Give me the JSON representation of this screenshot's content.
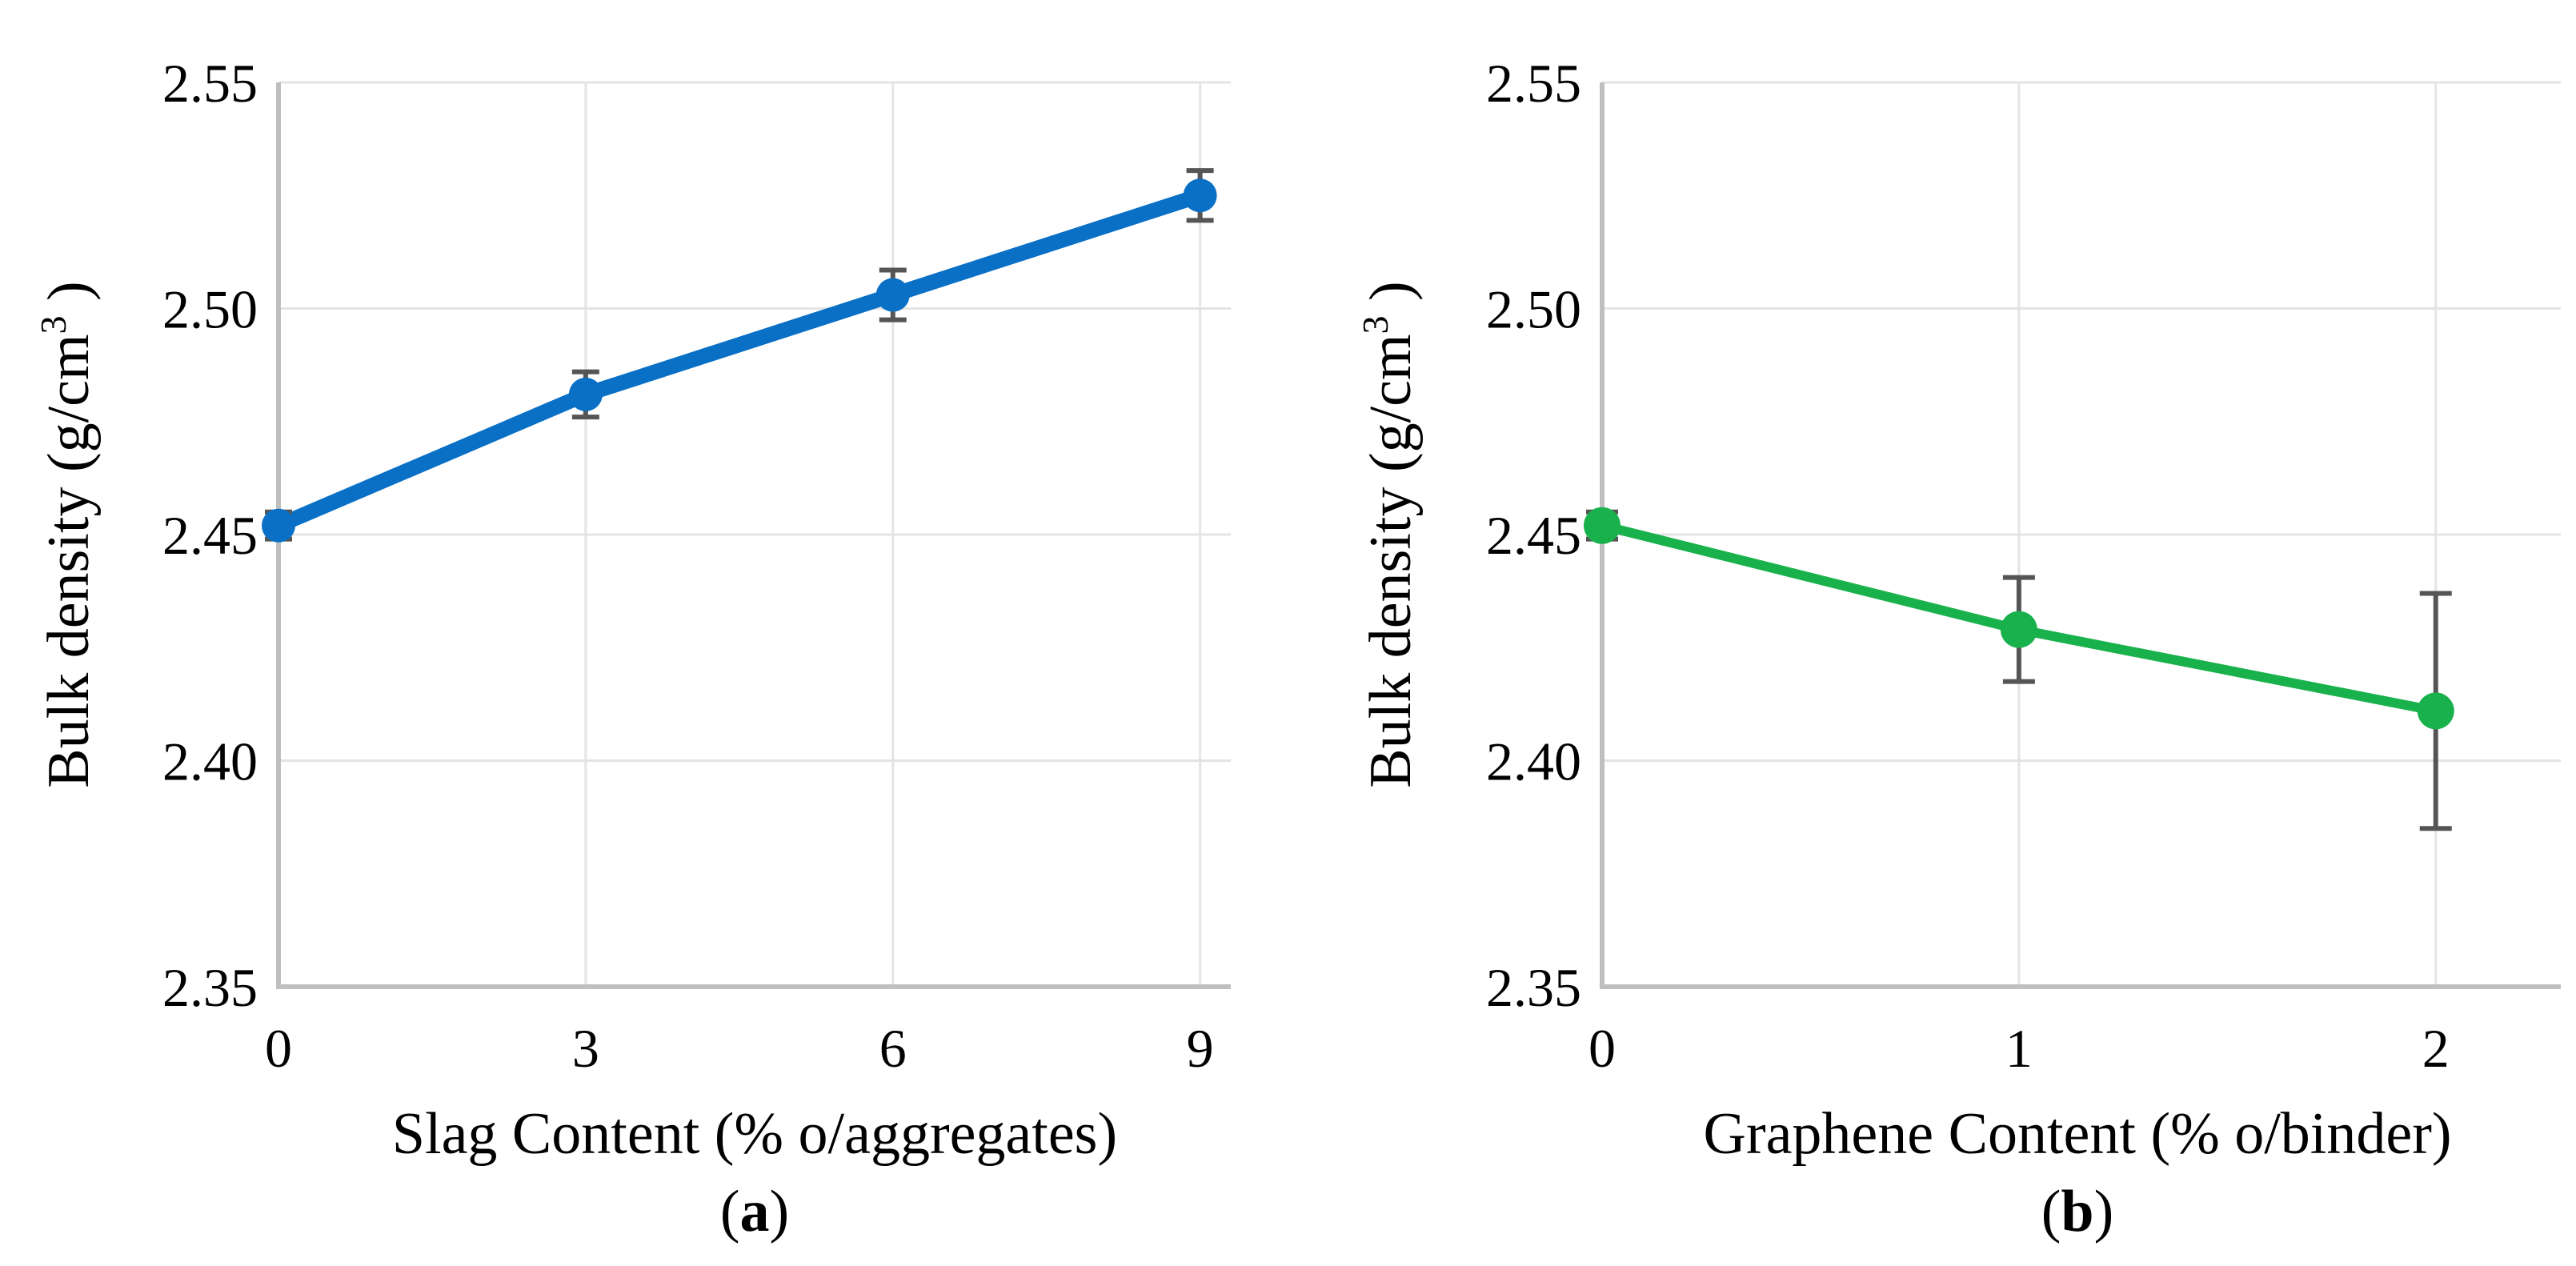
{
  "chart_data": [
    {
      "panel_label": "a",
      "type": "line",
      "xlabel": "Slag Content (% o/aggregates)",
      "ylabel_main": "Bulk density (g/cm",
      "ylabel_sup": "3",
      "ylabel_close": " )",
      "x": [
        0,
        3,
        6,
        9
      ],
      "x_tick_labels": [
        "0",
        "3",
        "6",
        "9"
      ],
      "xlim": [
        0,
        9.3
      ],
      "ylim": [
        2.35,
        2.55
      ],
      "y_ticks": [
        2.35,
        2.4,
        2.45,
        2.5,
        2.55
      ],
      "y_tick_labels": [
        "2.35",
        "2.40",
        "2.45",
        "2.50",
        "2.55"
      ],
      "grid": true,
      "series": [
        {
          "name": "Bulk density",
          "color": "#0a70c6",
          "values": [
            2.452,
            2.481,
            2.503,
            2.525
          ],
          "errors": [
            0.003,
            0.005,
            0.0055,
            0.0055
          ]
        }
      ]
    },
    {
      "panel_label": "b",
      "type": "line",
      "xlabel": "Graphene Content (% o/binder)",
      "ylabel_main": "Bulk density (g/cm",
      "ylabel_sup": "3",
      "ylabel_close": " )",
      "x": [
        0,
        1,
        2
      ],
      "x_tick_labels": [
        "0",
        "1",
        "2"
      ],
      "xlim": [
        0,
        2.3
      ],
      "ylim": [
        2.35,
        2.55
      ],
      "y_ticks": [
        2.35,
        2.4,
        2.45,
        2.5,
        2.55
      ],
      "y_tick_labels": [
        "2.35",
        "2.40",
        "2.45",
        "2.50",
        "2.55"
      ],
      "grid": true,
      "series": [
        {
          "name": "Bulk density",
          "color": "#19b14b",
          "values": [
            2.452,
            2.429,
            2.411
          ],
          "errors": [
            0.003,
            0.0115,
            0.026
          ]
        }
      ]
    }
  ],
  "colors": {
    "grid": "#e4e4e4",
    "axis": "#bfbfbf",
    "error_bar": "#555555"
  }
}
